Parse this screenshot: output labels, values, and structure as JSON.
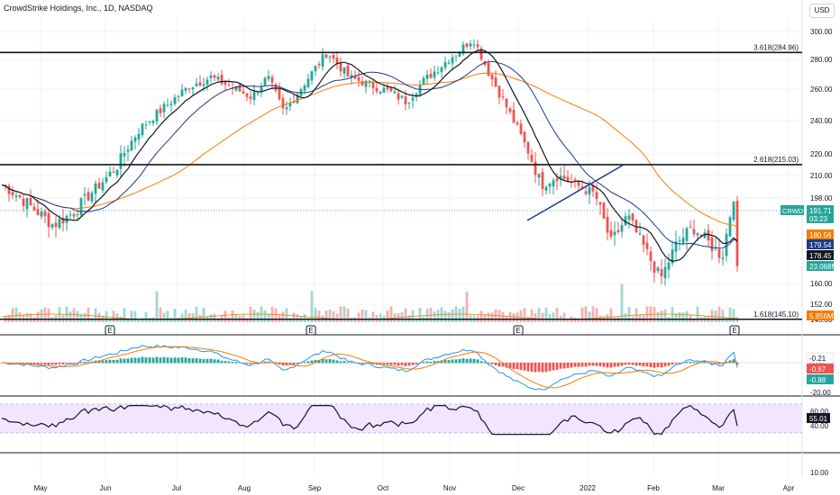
{
  "header": {
    "title": "CrowdStrike Holdings, Inc., 1D, NASDAQ",
    "currency": "USD"
  },
  "chart_data": {
    "type": "candlestick",
    "symbol": "CRWD",
    "price_ticks": [
      300,
      280,
      260,
      240,
      220,
      210,
      198,
      160,
      152,
      145
    ],
    "x_ticks": [
      "May",
      "Jun",
      "Jul",
      "Aug",
      "Sep",
      "Oct",
      "Nov",
      "Dec",
      "2022",
      "Feb",
      "Mar",
      "Apr"
    ],
    "levels": [
      {
        "label": "3.618(284.96)",
        "value": 284.96
      },
      {
        "label": "2.618(215.03)",
        "value": 215.03
      },
      {
        "label": "1.618(145.10)",
        "value": 145.1
      }
    ],
    "trendline": {
      "from": [
        "Dec",
        188
      ],
      "to": [
        "2022",
        215
      ]
    },
    "earnings_marker": "E",
    "price_path": [
      [
        "Apr",
        205
      ],
      [
        "May",
        186
      ],
      [
        "May",
        192
      ],
      [
        "Jun",
        215
      ],
      [
        "Jun",
        235
      ],
      [
        "Jul",
        262
      ],
      [
        "Jul",
        268
      ],
      [
        "Aug",
        255
      ],
      [
        "Aug",
        268
      ],
      [
        "Aug",
        245
      ],
      [
        "Sep",
        285
      ],
      [
        "Sep",
        268
      ],
      [
        "Oct",
        258
      ],
      [
        "Oct",
        252
      ],
      [
        "Oct",
        265
      ],
      [
        "Nov",
        285
      ],
      [
        "Nov",
        295
      ],
      [
        "Nov",
        270
      ],
      [
        "Dec",
        225
      ],
      [
        "Dec",
        205
      ],
      [
        "Dec",
        210
      ],
      [
        "2022",
        200
      ],
      [
        "2022",
        178
      ],
      [
        "2022",
        190
      ],
      [
        "Feb",
        162
      ],
      [
        "Feb",
        178
      ],
      [
        "Feb",
        185
      ],
      [
        "Mar",
        172
      ],
      [
        "Mar",
        203
      ],
      [
        "Mar",
        165
      ],
      [
        "Mar",
        191.71
      ]
    ],
    "price_badges": [
      {
        "id": "last",
        "label": "CRWD",
        "value": "191.71",
        "sub": "03:23",
        "color": "#26a69a"
      },
      {
        "id": "ema",
        "value": "180.56",
        "color": "#f57c00"
      },
      {
        "id": "sma",
        "value": "179.54",
        "color": "#1e3a8a"
      },
      {
        "id": "ma",
        "value": "178.45",
        "color": "#131722"
      },
      {
        "id": "vol",
        "value": "23.068M",
        "color": "#26a69a"
      },
      {
        "id": "volma",
        "value": "5.856M",
        "color": "#f57c00"
      }
    ],
    "macd": {
      "ticks": [
        "0.00",
        "-20.00"
      ],
      "badges": [
        {
          "value": "-0.21",
          "color": "#ffffff",
          "text": "#131722"
        },
        {
          "value": "-0.67",
          "color": "#ef5350",
          "text": "#ffffff"
        },
        {
          "value": "-0.88",
          "color": "#26a69a",
          "text": "#ffffff"
        }
      ]
    },
    "rsi": {
      "ticks": [
        "60.00",
        "40.00",
        "10.00"
      ],
      "value": "55.01",
      "band": [
        30,
        70
      ]
    },
    "colors": {
      "up": "#26a69a",
      "down": "#ef5350",
      "ema": "#f57c00",
      "sma": "#1e3a8a",
      "ma": "#131722"
    }
  }
}
